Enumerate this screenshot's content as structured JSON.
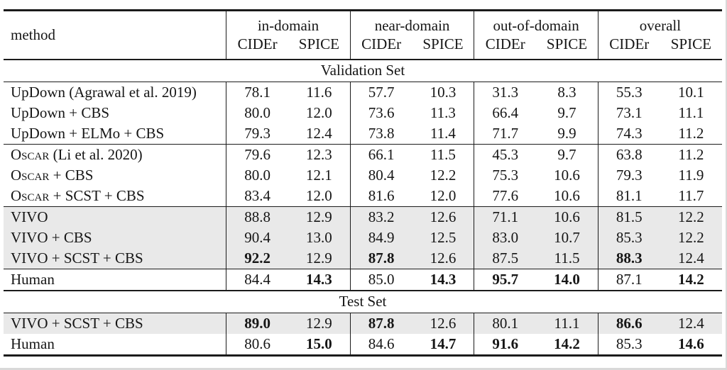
{
  "page": {
    "background_color": "#ffffff",
    "rule_color": "#1b1b1b",
    "highlight_color": "#e9e9e9"
  },
  "table": {
    "header": {
      "method_label": "method",
      "groups": [
        {
          "label": "in-domain"
        },
        {
          "label": "near-domain"
        },
        {
          "label": "out-of-domain"
        },
        {
          "label": "overall"
        }
      ],
      "metrics": [
        "CIDEr",
        "SPICE"
      ]
    },
    "sections": [
      {
        "title": "Validation Set",
        "heavy_rule_above": false,
        "row_groups": [
          {
            "rows": [
              {
                "method": [
                  {
                    "t": "UpDown (Agrawal et al. 2019)"
                  }
                ],
                "highlight": false,
                "values": [
                  {
                    "v": "78.1"
                  },
                  {
                    "v": "11.6"
                  },
                  {
                    "v": "57.7"
                  },
                  {
                    "v": "10.3"
                  },
                  {
                    "v": "31.3"
                  },
                  {
                    "v": "8.3"
                  },
                  {
                    "v": "55.3"
                  },
                  {
                    "v": "10.1"
                  }
                ]
              },
              {
                "method": [
                  {
                    "t": "UpDown + CBS"
                  }
                ],
                "highlight": false,
                "values": [
                  {
                    "v": "80.0"
                  },
                  {
                    "v": "12.0"
                  },
                  {
                    "v": "73.6"
                  },
                  {
                    "v": "11.3"
                  },
                  {
                    "v": "66.4"
                  },
                  {
                    "v": "9.7"
                  },
                  {
                    "v": "73.1"
                  },
                  {
                    "v": "11.1"
                  }
                ]
              },
              {
                "method": [
                  {
                    "t": "UpDown + ELMo + CBS"
                  }
                ],
                "highlight": false,
                "values": [
                  {
                    "v": "79.3"
                  },
                  {
                    "v": "12.4"
                  },
                  {
                    "v": "73.8"
                  },
                  {
                    "v": "11.4"
                  },
                  {
                    "v": "71.7"
                  },
                  {
                    "v": "9.9"
                  },
                  {
                    "v": "74.3"
                  },
                  {
                    "v": "11.2"
                  }
                ]
              }
            ]
          },
          {
            "rows": [
              {
                "method": [
                  {
                    "t": "Oscar",
                    "sc": true
                  },
                  {
                    "t": " (Li et al. 2020)"
                  }
                ],
                "highlight": false,
                "values": [
                  {
                    "v": "79.6"
                  },
                  {
                    "v": "12.3"
                  },
                  {
                    "v": "66.1"
                  },
                  {
                    "v": "11.5"
                  },
                  {
                    "v": "45.3"
                  },
                  {
                    "v": "9.7"
                  },
                  {
                    "v": "63.8"
                  },
                  {
                    "v": "11.2"
                  }
                ]
              },
              {
                "method": [
                  {
                    "t": "Oscar",
                    "sc": true
                  },
                  {
                    "t": " + CBS"
                  }
                ],
                "highlight": false,
                "values": [
                  {
                    "v": "80.0"
                  },
                  {
                    "v": "12.1"
                  },
                  {
                    "v": "80.4"
                  },
                  {
                    "v": "12.2"
                  },
                  {
                    "v": "75.3"
                  },
                  {
                    "v": "10.6"
                  },
                  {
                    "v": "79.3"
                  },
                  {
                    "v": "11.9"
                  }
                ]
              },
              {
                "method": [
                  {
                    "t": "Oscar",
                    "sc": true
                  },
                  {
                    "t": " + SCST + CBS"
                  }
                ],
                "highlight": false,
                "values": [
                  {
                    "v": "83.4"
                  },
                  {
                    "v": "12.0"
                  },
                  {
                    "v": "81.6"
                  },
                  {
                    "v": "12.0"
                  },
                  {
                    "v": "77.6"
                  },
                  {
                    "v": "10.6"
                  },
                  {
                    "v": "81.1"
                  },
                  {
                    "v": "11.7"
                  }
                ]
              }
            ]
          },
          {
            "rows": [
              {
                "method": [
                  {
                    "t": "VIVO"
                  }
                ],
                "highlight": true,
                "values": [
                  {
                    "v": "88.8"
                  },
                  {
                    "v": "12.9"
                  },
                  {
                    "v": "83.2"
                  },
                  {
                    "v": "12.6"
                  },
                  {
                    "v": "71.1"
                  },
                  {
                    "v": "10.6"
                  },
                  {
                    "v": "81.5"
                  },
                  {
                    "v": "12.2"
                  }
                ]
              },
              {
                "method": [
                  {
                    "t": "VIVO + CBS"
                  }
                ],
                "highlight": true,
                "values": [
                  {
                    "v": "90.4"
                  },
                  {
                    "v": "13.0"
                  },
                  {
                    "v": "84.9"
                  },
                  {
                    "v": "12.5"
                  },
                  {
                    "v": "83.0"
                  },
                  {
                    "v": "10.7"
                  },
                  {
                    "v": "85.3"
                  },
                  {
                    "v": "12.2"
                  }
                ]
              },
              {
                "method": [
                  {
                    "t": "VIVO + SCST + CBS"
                  }
                ],
                "highlight": true,
                "values": [
                  {
                    "v": "92.2",
                    "b": true
                  },
                  {
                    "v": "12.9"
                  },
                  {
                    "v": "87.8",
                    "b": true
                  },
                  {
                    "v": "12.6"
                  },
                  {
                    "v": "87.5"
                  },
                  {
                    "v": "11.5"
                  },
                  {
                    "v": "88.3",
                    "b": true
                  },
                  {
                    "v": "12.4"
                  }
                ]
              }
            ]
          },
          {
            "rows": [
              {
                "method": [
                  {
                    "t": "Human"
                  }
                ],
                "highlight": false,
                "values": [
                  {
                    "v": "84.4"
                  },
                  {
                    "v": "14.3",
                    "b": true
                  },
                  {
                    "v": "85.0"
                  },
                  {
                    "v": "14.3",
                    "b": true
                  },
                  {
                    "v": "95.7",
                    "b": true
                  },
                  {
                    "v": "14.0",
                    "b": true
                  },
                  {
                    "v": "87.1"
                  },
                  {
                    "v": "14.2",
                    "b": true
                  }
                ]
              }
            ]
          }
        ]
      },
      {
        "title": "Test Set",
        "heavy_rule_above": true,
        "row_groups": [
          {
            "rows": [
              {
                "method": [
                  {
                    "t": "VIVO + SCST + CBS"
                  }
                ],
                "highlight": true,
                "values": [
                  {
                    "v": "89.0",
                    "b": true
                  },
                  {
                    "v": "12.9"
                  },
                  {
                    "v": "87.8",
                    "b": true
                  },
                  {
                    "v": "12.6"
                  },
                  {
                    "v": "80.1"
                  },
                  {
                    "v": "11.1"
                  },
                  {
                    "v": "86.6",
                    "b": true
                  },
                  {
                    "v": "12.4"
                  }
                ]
              },
              {
                "method": [
                  {
                    "t": "Human"
                  }
                ],
                "highlight": false,
                "values": [
                  {
                    "v": "80.6"
                  },
                  {
                    "v": "15.0",
                    "b": true
                  },
                  {
                    "v": "84.6"
                  },
                  {
                    "v": "14.7",
                    "b": true
                  },
                  {
                    "v": "91.6",
                    "b": true
                  },
                  {
                    "v": "14.2",
                    "b": true
                  },
                  {
                    "v": "85.3"
                  },
                  {
                    "v": "14.6",
                    "b": true
                  }
                ]
              }
            ]
          }
        ]
      }
    ]
  }
}
